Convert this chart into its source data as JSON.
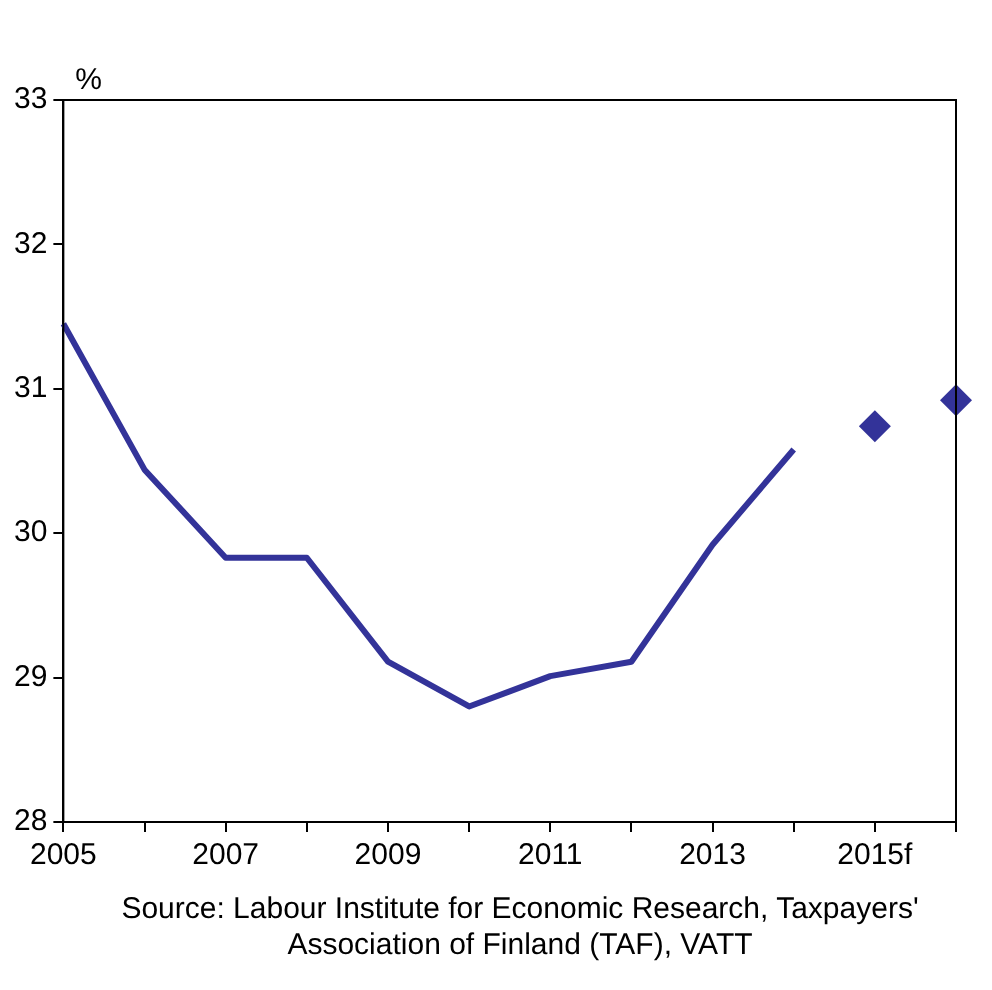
{
  "chart_data": {
    "type": "line",
    "ylabel": "%",
    "categories": [
      "2005",
      null,
      "2007",
      null,
      "2009",
      null,
      "2011",
      null,
      "2013",
      null,
      "2015f",
      null
    ],
    "series": [
      {
        "color": "#333399",
        "marker": "none",
        "values": [
          31.45,
          30.44,
          29.83,
          29.83,
          29.11,
          28.8,
          29.01,
          29.11,
          29.92,
          30.58,
          null,
          null
        ]
      },
      {
        "type": "scatter",
        "color": "#333399",
        "marker": "diamond",
        "values": [
          null,
          null,
          null,
          null,
          null,
          null,
          null,
          null,
          null,
          null,
          30.74,
          30.92
        ]
      }
    ],
    "ylim": [
      28,
      33
    ],
    "yticks": [
      28,
      29,
      30,
      31,
      32,
      33
    ],
    "grid": false,
    "legend": false,
    "annotations": [
      "Source: Labour Institute for Economic Research, Taxpayers' Association of Finland (TAF), VATT"
    ]
  }
}
